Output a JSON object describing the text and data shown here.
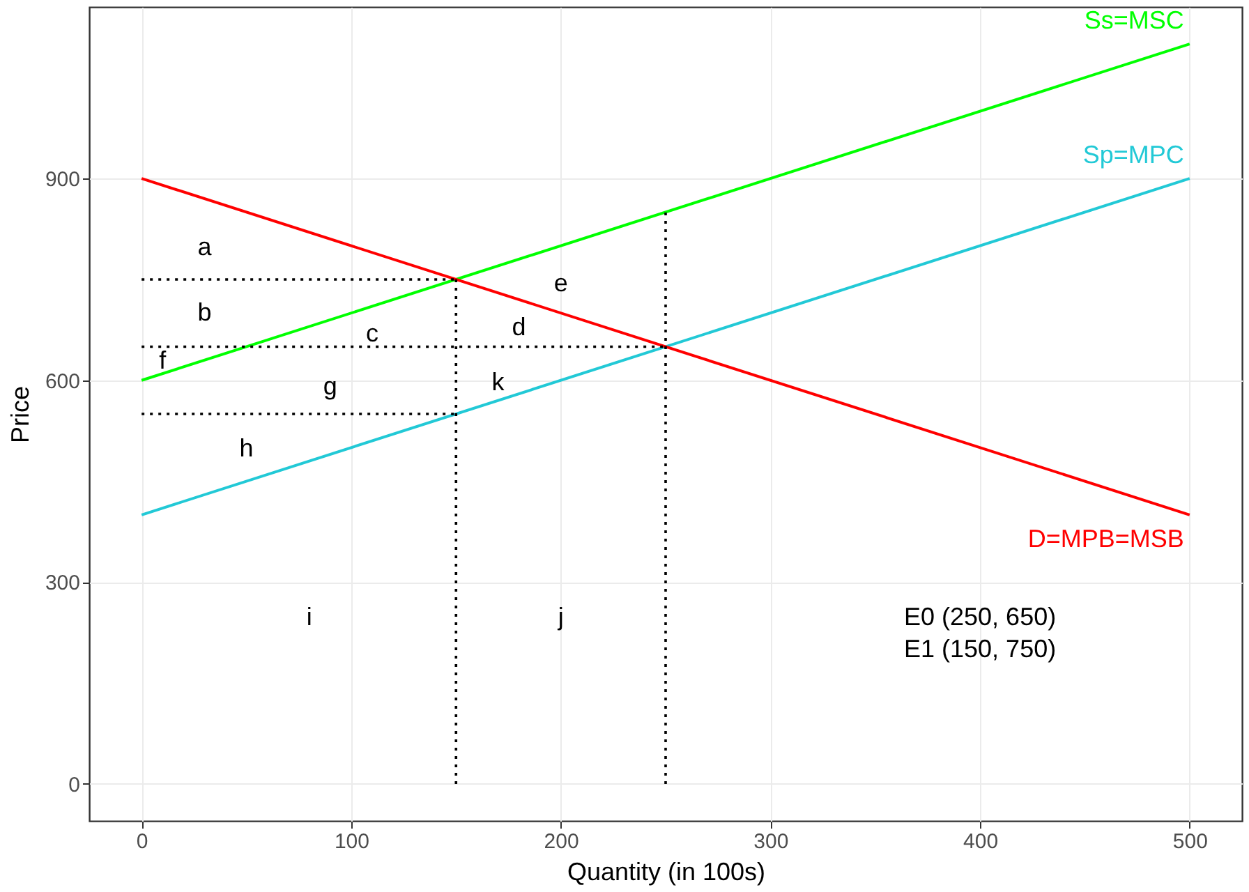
{
  "chart_data": {
    "type": "line",
    "xlabel": "Quantity (in 100s)",
    "ylabel": "Price",
    "xlim": [
      -25,
      525
    ],
    "ylim": [
      -55,
      1155
    ],
    "xticks": [
      0,
      100,
      200,
      300,
      400,
      500
    ],
    "yticks": [
      0,
      300,
      600,
      900
    ],
    "grid": true,
    "marker": "none",
    "series": [
      {
        "name": "Ss=MSC",
        "color": "#00ff00",
        "x": [
          0,
          500
        ],
        "values": [
          600,
          1100
        ],
        "line_style": "solid"
      },
      {
        "name": "Sp=MPC",
        "color": "#22c9d6",
        "x": [
          0,
          500
        ],
        "values": [
          400,
          900
        ],
        "line_style": "solid"
      },
      {
        "name": "D=MPB=MSB",
        "color": "#ff0000",
        "x": [
          0,
          500
        ],
        "values": [
          900,
          400
        ],
        "line_style": "solid"
      },
      {
        "color": "#000000",
        "x": [
          0,
          150
        ],
        "values": [
          750,
          750
        ],
        "line_style": "dotted"
      },
      {
        "color": "#000000",
        "x": [
          0,
          250
        ],
        "values": [
          650,
          650
        ],
        "line_style": "dotted"
      },
      {
        "color": "#000000",
        "x": [
          0,
          150
        ],
        "values": [
          550,
          550
        ],
        "line_style": "dotted"
      },
      {
        "color": "#000000",
        "x": [
          150,
          150
        ],
        "values": [
          0,
          750
        ],
        "line_style": "dotted"
      },
      {
        "color": "#000000",
        "x": [
          250,
          250
        ],
        "values": [
          0,
          850
        ],
        "line_style": "dotted"
      }
    ],
    "annotations": [
      "a",
      "b",
      "c",
      "d",
      "e",
      "f",
      "g",
      "h",
      "i",
      "j",
      "k",
      "E0 (250, 650)",
      "E1 (150, 750)"
    ]
  }
}
